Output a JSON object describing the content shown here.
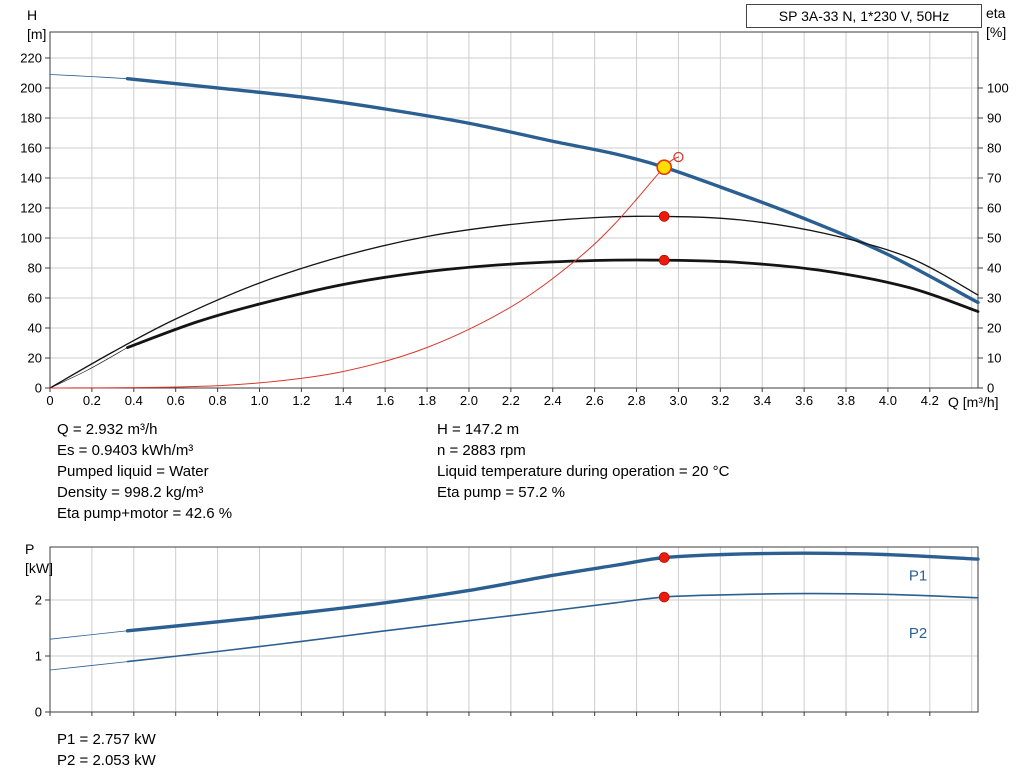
{
  "title_box": "SP 3A-33 N, 1*230 V, 50Hz",
  "axis_labels": {
    "h_top": "H",
    "h_unit": "[m]",
    "eta_top": "eta",
    "eta_unit": "[%]",
    "q": "Q [m³/h]",
    "p_top": "P",
    "p_unit": "[kW]"
  },
  "info": {
    "left": [
      "Q = 2.932 m³/h",
      "Es = 0.9403 kWh/m³",
      "Pumped liquid = Water",
      "Density = 998.2 kg/m³",
      "Eta pump+motor = 42.6 %"
    ],
    "right": [
      "H = 147.2 m",
      "n = 2883 rpm",
      "Liquid temperature during operation = 20 °C",
      "Eta pump = 57.2 %"
    ]
  },
  "footer": [
    "P1 = 2.757 kW",
    "P2 = 2.053 kW"
  ],
  "colors": {
    "curve_blue": "#2b5f92",
    "curve_black": "#141414",
    "curve_red": "#d9382c",
    "marker_red": "#ed1c09",
    "duty_yellow": "#ffdf00",
    "grid": "#cdcdcd",
    "frame": "#3c3c3c"
  },
  "chart_data": [
    {
      "type": "line",
      "title": "SP 3A-33 N, 1*230 V, 50Hz",
      "xlabel": "Q [m³/h]",
      "ylabel": "H [m]",
      "y2label": "eta [%]",
      "xlim": [
        0,
        4.43
      ],
      "ylim": [
        0,
        237.33
      ],
      "y2lim": [
        0,
        118.67
      ],
      "xgrid_step": 0.2,
      "xticks": [
        0,
        0.2,
        0.4,
        0.6,
        0.8,
        1.0,
        1.2,
        1.4,
        1.6,
        1.8,
        2.0,
        2.2,
        2.4,
        2.6,
        2.8,
        3.0,
        3.2,
        3.4,
        3.6,
        3.8,
        4.0,
        4.2
      ],
      "yticks": [
        0,
        20,
        40,
        60,
        80,
        100,
        120,
        140,
        160,
        180,
        200,
        220
      ],
      "y2ticks": [
        0,
        10,
        20,
        30,
        40,
        50,
        60,
        70,
        80,
        90,
        100
      ],
      "series": [
        {
          "name": "head-curve-leadin",
          "axis": "y",
          "color": "#2b5f92",
          "width": 0.8,
          "points": [
            [
              0,
              209
            ],
            [
              0.2,
              207.6
            ],
            [
              0.37,
              206.2
            ]
          ]
        },
        {
          "name": "head-curve",
          "axis": "y",
          "color": "#2b5f92",
          "width": 3.4,
          "points": [
            [
              0.37,
              206.2
            ],
            [
              0.8,
              200
            ],
            [
              1.2,
              194
            ],
            [
              1.6,
              186
            ],
            [
              2.0,
              176.5
            ],
            [
              2.4,
              164.5
            ],
            [
              2.7,
              156
            ],
            [
              2.932,
              147.2
            ],
            [
              3.2,
              134
            ],
            [
              3.6,
              113
            ],
            [
              4.0,
              89
            ],
            [
              4.43,
              57
            ]
          ]
        },
        {
          "name": "eta-pump-curve",
          "axis": "y2",
          "color": "#141414",
          "width": 1.3,
          "points": [
            [
              0,
              0
            ],
            [
              0.3,
              12
            ],
            [
              0.6,
              23
            ],
            [
              1.0,
              35
            ],
            [
              1.4,
              44
            ],
            [
              1.8,
              50.5
            ],
            [
              2.2,
              54.5
            ],
            [
              2.6,
              56.8
            ],
            [
              2.932,
              57.2
            ],
            [
              3.3,
              56
            ],
            [
              3.7,
              51.5
            ],
            [
              4.1,
              43.5
            ],
            [
              4.43,
              31
            ]
          ]
        },
        {
          "name": "eta-pump-motor-leadin",
          "axis": "y2",
          "color": "#141414",
          "width": 0.7,
          "points": [
            [
              0,
              0
            ],
            [
              0.18,
              6
            ],
            [
              0.37,
              13.5
            ]
          ]
        },
        {
          "name": "eta-pump-motor-curve",
          "axis": "y2",
          "color": "#141414",
          "width": 2.8,
          "points": [
            [
              0.37,
              13.5
            ],
            [
              0.7,
              22
            ],
            [
              1.0,
              28
            ],
            [
              1.4,
              34.5
            ],
            [
              1.8,
              38.8
            ],
            [
              2.2,
              41.3
            ],
            [
              2.6,
              42.5
            ],
            [
              2.932,
              42.6
            ],
            [
              3.3,
              41.8
            ],
            [
              3.7,
              39
            ],
            [
              4.1,
              33.5
            ],
            [
              4.43,
              25.5
            ]
          ]
        },
        {
          "name": "system-curve",
          "axis": "y",
          "color": "#d9382c",
          "width": 1,
          "points": [
            [
              0,
              0
            ],
            [
              0.6,
              0.7
            ],
            [
              1.0,
              3.4
            ],
            [
              1.4,
              11
            ],
            [
              1.8,
              27
            ],
            [
              2.2,
              54
            ],
            [
              2.5,
              84
            ],
            [
              2.7,
              110
            ],
            [
              2.932,
              147.2
            ],
            [
              3.0,
              154
            ]
          ]
        }
      ],
      "markers": [
        {
          "axis": "y",
          "x": 2.932,
          "value": 147.2,
          "type": "duty"
        },
        {
          "axis": "y",
          "x": 3.0,
          "value": 154,
          "type": "open"
        },
        {
          "axis": "y2",
          "x": 2.932,
          "value": 57.2,
          "type": "dot"
        },
        {
          "axis": "y2",
          "x": 2.932,
          "value": 42.6,
          "type": "dot"
        }
      ]
    },
    {
      "type": "line",
      "title": "Power curves",
      "xlabel": "Q [m³/h]",
      "ylabel": "P [kW]",
      "xlim": [
        0,
        4.43
      ],
      "ylim": [
        0,
        2.946
      ],
      "xgrid_step": 0.2,
      "xticks": [
        0,
        0.2,
        0.4,
        0.6,
        0.8,
        1.0,
        1.2,
        1.4,
        1.6,
        1.8,
        2.0,
        2.2,
        2.4,
        2.6,
        2.8,
        3.0,
        3.2,
        3.4,
        3.6,
        3.8,
        4.0,
        4.2
      ],
      "yticks": [
        0,
        1,
        2
      ],
      "series": [
        {
          "name": "p1-curve-leadin",
          "axis": "y",
          "color": "#2b5f92",
          "width": 0.8,
          "points": [
            [
              0,
              1.3
            ],
            [
              0.37,
              1.45
            ]
          ]
        },
        {
          "name": "p1-curve",
          "axis": "y",
          "color": "#2b5f92",
          "width": 3.4,
          "points": [
            [
              0.37,
              1.45
            ],
            [
              0.8,
              1.61
            ],
            [
              1.2,
              1.77
            ],
            [
              1.6,
              1.95
            ],
            [
              2.0,
              2.17
            ],
            [
              2.4,
              2.44
            ],
            [
              2.7,
              2.62
            ],
            [
              2.932,
              2.757
            ],
            [
              3.2,
              2.81
            ],
            [
              3.6,
              2.835
            ],
            [
              4.0,
              2.81
            ],
            [
              4.43,
              2.73
            ]
          ]
        },
        {
          "name": "p2-curve-leadin",
          "axis": "y",
          "color": "#2b5f92",
          "width": 0.8,
          "points": [
            [
              0,
              0.75
            ],
            [
              0.37,
              0.9
            ]
          ]
        },
        {
          "name": "p2-curve",
          "axis": "y",
          "color": "#2b5f92",
          "width": 1.6,
          "points": [
            [
              0.37,
              0.9
            ],
            [
              0.8,
              1.08
            ],
            [
              1.2,
              1.26
            ],
            [
              1.6,
              1.45
            ],
            [
              2.0,
              1.63
            ],
            [
              2.4,
              1.81
            ],
            [
              2.7,
              1.95
            ],
            [
              2.932,
              2.053
            ],
            [
              3.2,
              2.09
            ],
            [
              3.6,
              2.115
            ],
            [
              4.0,
              2.1
            ],
            [
              4.43,
              2.04
            ]
          ]
        }
      ],
      "markers": [
        {
          "axis": "y",
          "x": 2.932,
          "value": 2.757,
          "type": "dot"
        },
        {
          "axis": "y",
          "x": 2.932,
          "value": 2.053,
          "type": "dot"
        }
      ],
      "labels": [
        {
          "text": "P1",
          "x": 4.1,
          "v": 2.35,
          "color": "#2b5f92"
        },
        {
          "text": "P2",
          "x": 4.1,
          "v": 1.32,
          "color": "#2b5f92"
        }
      ]
    }
  ]
}
